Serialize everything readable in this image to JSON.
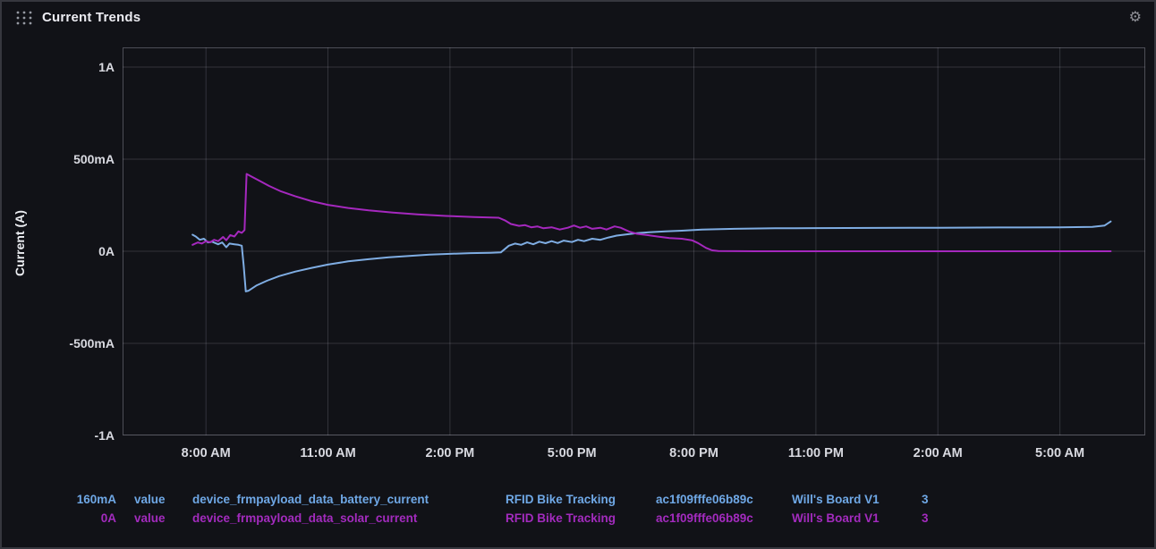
{
  "panel": {
    "title": "Current Trends",
    "y_axis_label": "Current (A)"
  },
  "icons": {
    "drag_handle": "grid-dots",
    "settings": "gear"
  },
  "colors": {
    "background": "#111217",
    "grid": "rgba(204,204,220,0.18)",
    "plot_border": "rgba(204,204,220,0.32)",
    "tick_text": "#d9dae1",
    "battery_series": "#7FADE3",
    "solar_series": "#A528BE"
  },
  "chart_data": {
    "type": "line",
    "title": "Current Trends",
    "ylabel": "Current (A)",
    "grid": true,
    "xlim_hours": [
      5.95,
      31.1
    ],
    "ylim_mA": [
      -1000,
      1107
    ],
    "x_ticks": [
      {
        "t": 8,
        "label": "8:00 AM"
      },
      {
        "t": 11,
        "label": "11:00 AM"
      },
      {
        "t": 14,
        "label": "2:00 PM"
      },
      {
        "t": 17,
        "label": "5:00 PM"
      },
      {
        "t": 20,
        "label": "8:00 PM"
      },
      {
        "t": 23,
        "label": "11:00 PM"
      },
      {
        "t": 26,
        "label": "2:00 AM"
      },
      {
        "t": 29,
        "label": "5:00 AM"
      }
    ],
    "y_ticks": [
      {
        "v": 1000,
        "label": "1A"
      },
      {
        "v": 500,
        "label": "500mA"
      },
      {
        "v": 0,
        "label": "0A"
      },
      {
        "v": -500,
        "label": "-500mA"
      },
      {
        "v": -1000,
        "label": "-1A"
      }
    ],
    "series": [
      {
        "name": "device_frmpayload_data_battery_current",
        "color": "#7FADE3",
        "latest_value": "160mA",
        "points": [
          [
            7.67,
            90
          ],
          [
            7.75,
            80
          ],
          [
            7.85,
            62
          ],
          [
            7.95,
            68
          ],
          [
            8.05,
            48
          ],
          [
            8.15,
            52
          ],
          [
            8.3,
            38
          ],
          [
            8.4,
            48
          ],
          [
            8.5,
            22
          ],
          [
            8.58,
            42
          ],
          [
            8.7,
            38
          ],
          [
            8.8,
            35
          ],
          [
            8.88,
            30
          ],
          [
            8.93,
            -80
          ],
          [
            8.98,
            -218
          ],
          [
            9.05,
            -214
          ],
          [
            9.25,
            -185
          ],
          [
            9.5,
            -160
          ],
          [
            9.8,
            -135
          ],
          [
            10.2,
            -110
          ],
          [
            10.6,
            -90
          ],
          [
            11.0,
            -72
          ],
          [
            11.5,
            -55
          ],
          [
            12.0,
            -43
          ],
          [
            12.5,
            -33
          ],
          [
            13.0,
            -25
          ],
          [
            13.5,
            -18
          ],
          [
            14.0,
            -14
          ],
          [
            14.5,
            -10
          ],
          [
            15.0,
            -8
          ],
          [
            15.25,
            -6
          ],
          [
            15.45,
            30
          ],
          [
            15.6,
            42
          ],
          [
            15.75,
            35
          ],
          [
            15.9,
            48
          ],
          [
            16.05,
            38
          ],
          [
            16.2,
            52
          ],
          [
            16.35,
            44
          ],
          [
            16.5,
            55
          ],
          [
            16.65,
            45
          ],
          [
            16.8,
            58
          ],
          [
            17.0,
            50
          ],
          [
            17.15,
            62
          ],
          [
            17.3,
            55
          ],
          [
            17.5,
            68
          ],
          [
            17.7,
            62
          ],
          [
            17.9,
            75
          ],
          [
            18.1,
            85
          ],
          [
            18.35,
            92
          ],
          [
            18.6,
            98
          ],
          [
            18.9,
            103
          ],
          [
            19.3,
            108
          ],
          [
            19.7,
            112
          ],
          [
            20.2,
            118
          ],
          [
            21.0,
            122
          ],
          [
            22.0,
            125
          ],
          [
            23.0,
            126
          ],
          [
            24.5,
            127
          ],
          [
            26.0,
            128
          ],
          [
            27.5,
            129
          ],
          [
            29.0,
            130
          ],
          [
            29.8,
            132
          ],
          [
            30.1,
            140
          ],
          [
            30.25,
            162
          ]
        ]
      },
      {
        "name": "device_frmpayload_data_solar_current",
        "color": "#A528BE",
        "latest_value": "0A",
        "points": [
          [
            7.67,
            35
          ],
          [
            7.8,
            48
          ],
          [
            7.9,
            42
          ],
          [
            8.0,
            55
          ],
          [
            8.1,
            48
          ],
          [
            8.2,
            62
          ],
          [
            8.3,
            55
          ],
          [
            8.42,
            78
          ],
          [
            8.5,
            60
          ],
          [
            8.6,
            88
          ],
          [
            8.7,
            80
          ],
          [
            8.8,
            108
          ],
          [
            8.88,
            100
          ],
          [
            8.95,
            115
          ],
          [
            9.0,
            420
          ],
          [
            9.1,
            408
          ],
          [
            9.3,
            385
          ],
          [
            9.55,
            355
          ],
          [
            9.85,
            325
          ],
          [
            10.2,
            298
          ],
          [
            10.6,
            272
          ],
          [
            11.0,
            252
          ],
          [
            11.5,
            235
          ],
          [
            12.0,
            222
          ],
          [
            12.6,
            210
          ],
          [
            13.2,
            200
          ],
          [
            13.9,
            192
          ],
          [
            14.6,
            186
          ],
          [
            15.2,
            182
          ],
          [
            15.35,
            168
          ],
          [
            15.5,
            148
          ],
          [
            15.7,
            138
          ],
          [
            15.85,
            142
          ],
          [
            16.0,
            130
          ],
          [
            16.15,
            135
          ],
          [
            16.3,
            125
          ],
          [
            16.5,
            130
          ],
          [
            16.7,
            118
          ],
          [
            16.9,
            128
          ],
          [
            17.05,
            140
          ],
          [
            17.2,
            128
          ],
          [
            17.35,
            135
          ],
          [
            17.5,
            122
          ],
          [
            17.7,
            128
          ],
          [
            17.85,
            118
          ],
          [
            18.05,
            135
          ],
          [
            18.2,
            128
          ],
          [
            18.4,
            108
          ],
          [
            18.6,
            95
          ],
          [
            18.85,
            88
          ],
          [
            19.1,
            80
          ],
          [
            19.4,
            72
          ],
          [
            19.7,
            68
          ],
          [
            19.95,
            60
          ],
          [
            20.1,
            45
          ],
          [
            20.3,
            18
          ],
          [
            20.45,
            5
          ],
          [
            20.6,
            1
          ],
          [
            21.5,
            0
          ],
          [
            23.0,
            0
          ],
          [
            25.0,
            0
          ],
          [
            27.0,
            0
          ],
          [
            29.0,
            0
          ],
          [
            30.25,
            0
          ]
        ]
      }
    ]
  },
  "legend": {
    "rows": [
      {
        "color": "#6FA8E6",
        "cells": [
          "160mA",
          "value",
          "device_frmpayload_data_battery_current",
          "RFID Bike Tracking",
          "ac1f09fffe06b89c",
          "Will's Board V1",
          "3"
        ]
      },
      {
        "color": "#A32BBE",
        "cells": [
          "0A",
          "value",
          "device_frmpayload_data_solar_current",
          "RFID Bike Tracking",
          "ac1f09fffe06b89c",
          "Will's Board V1",
          "3"
        ]
      }
    ]
  }
}
